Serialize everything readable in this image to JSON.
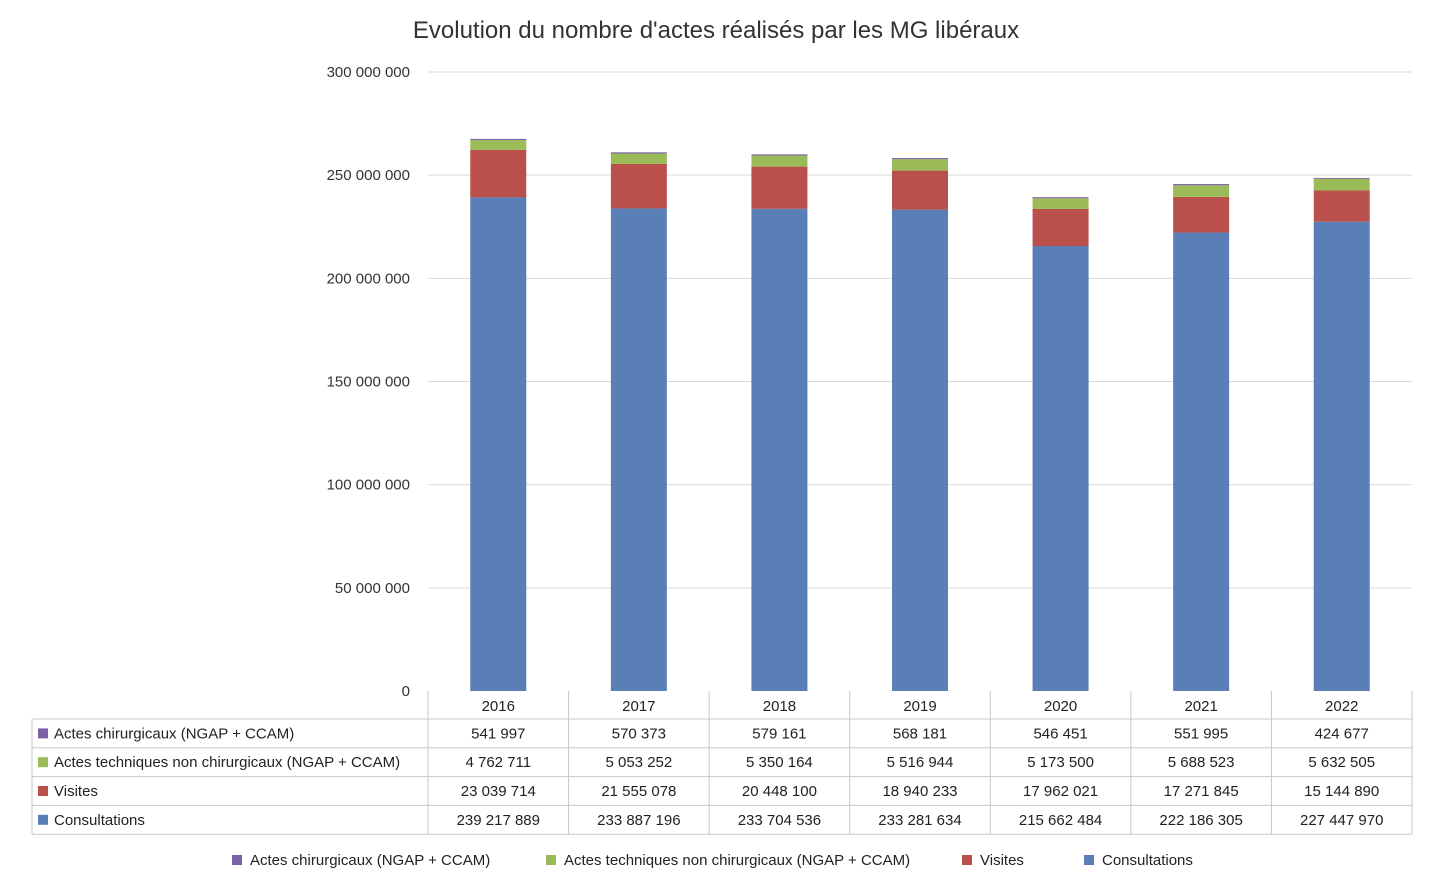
{
  "chart_data": {
    "type": "bar",
    "stacked": true,
    "title": "Evolution du nombre d'actes réalisés par les MG libéraux",
    "categories": [
      "2016",
      "2017",
      "2018",
      "2019",
      "2020",
      "2021",
      "2022"
    ],
    "series": [
      {
        "name": "Consultations",
        "color": "#5A7FB7",
        "values": [
          239217889,
          233887196,
          233704536,
          233281634,
          215662484,
          222186305,
          227447970
        ],
        "labels": [
          "239 217 889",
          "233 887 196",
          "233 704 536",
          "233 281 634",
          "215 662 484",
          "222 186 305",
          "227 447 970"
        ]
      },
      {
        "name": "Visites",
        "color": "#B9504C",
        "values": [
          23039714,
          21555078,
          20448100,
          18940233,
          17962021,
          17271845,
          15144890
        ],
        "labels": [
          "23 039 714",
          "21 555 078",
          "20 448 100",
          "18 940 233",
          "17 962 021",
          "17 271 845",
          "15 144 890"
        ]
      },
      {
        "name": "Actes techniques non chirurgicaux (NGAP + CCAM)",
        "color": "#9BBB59",
        "values": [
          4762711,
          5053252,
          5350164,
          5516944,
          5173500,
          5688523,
          5632505
        ],
        "labels": [
          "4 762 711",
          "5 053 252",
          "5 350 164",
          "5 516 944",
          "5 173 500",
          "5 688 523",
          "5 632 505"
        ]
      },
      {
        "name": "Actes chirurgicaux (NGAP + CCAM)",
        "color": "#7B61A8",
        "values": [
          541997,
          570373,
          579161,
          568181,
          546451,
          551995,
          424677
        ],
        "labels": [
          "541 997",
          "570 373",
          "579 161",
          "568 181",
          "546 451",
          "551 995",
          "424 677"
        ]
      }
    ],
    "ylim": [
      0,
      300000000
    ],
    "yticks": [
      0,
      50000000,
      100000000,
      150000000,
      200000000,
      250000000,
      300000000
    ],
    "ytick_labels": [
      "0",
      "50 000 000",
      "100 000 000",
      "150 000 000",
      "200 000 000",
      "250 000 000",
      "300 000 000"
    ],
    "table_row_order": [
      "Actes chirurgicaux (NGAP + CCAM)",
      "Actes techniques non chirurgicaux (NGAP + CCAM)",
      "Visites",
      "Consultations"
    ],
    "grid": true,
    "legend_position": "bottom"
  }
}
